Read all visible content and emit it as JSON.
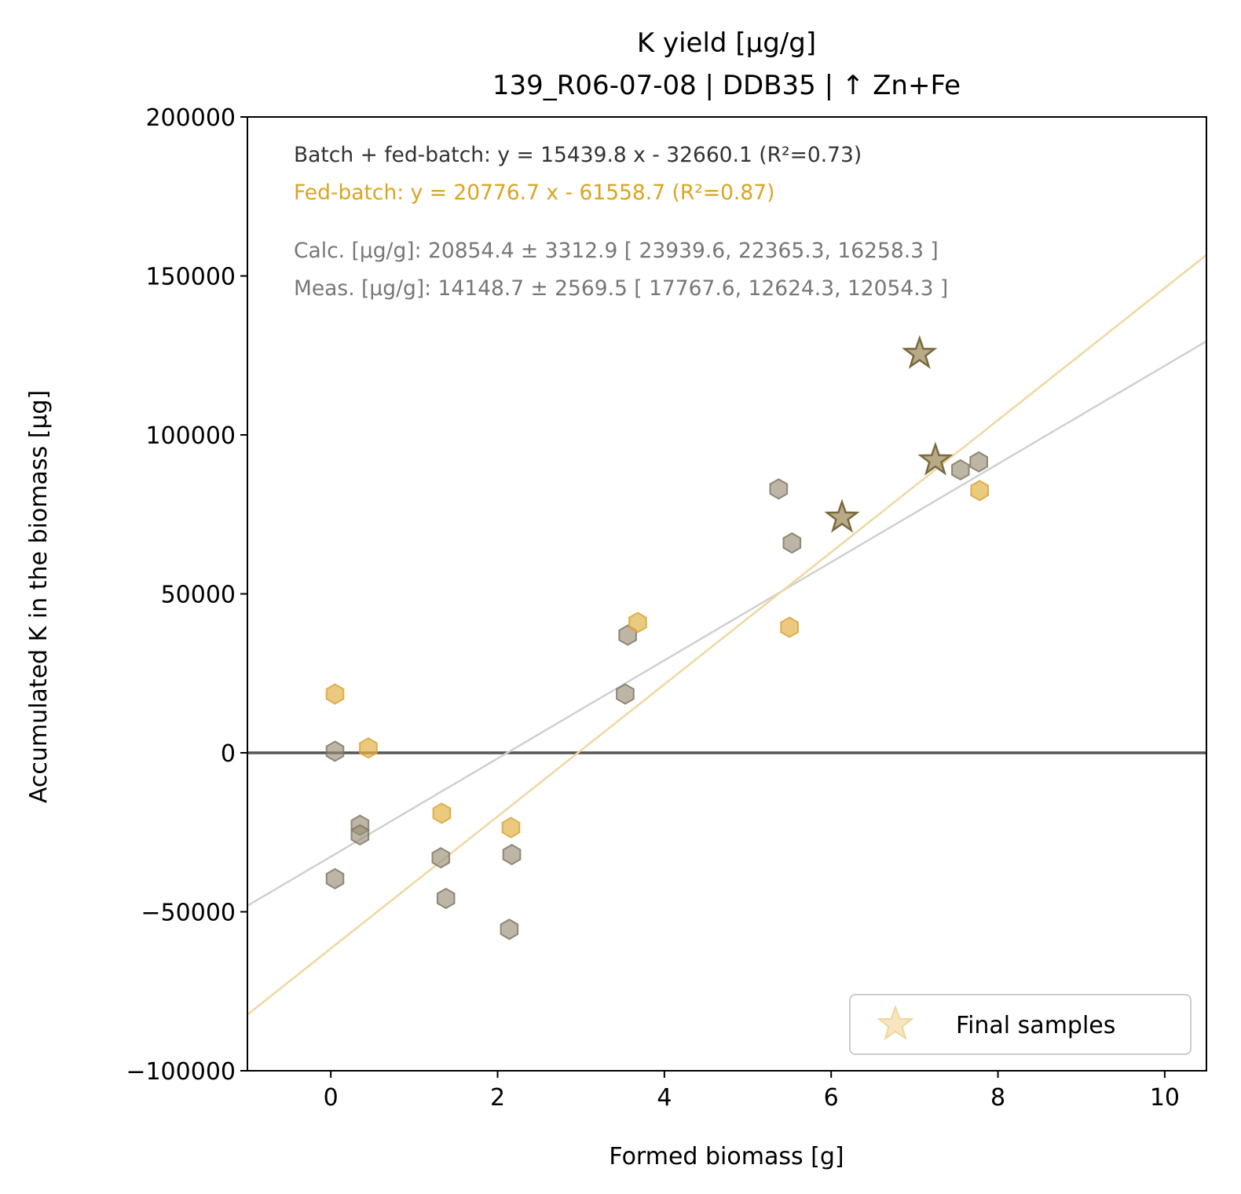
{
  "chart_data": {
    "type": "scatter",
    "title": "K yield [µg/g]",
    "subtitle": "139_R06-07-08  |  DDB35  |  ↑ Zn+Fe",
    "xlabel": "Formed biomass [g]",
    "ylabel": "Accumulated K in the biomass [µg]",
    "xlim": [
      -1.0,
      10.5
    ],
    "ylim": [
      -100000,
      200000
    ],
    "xticks": [
      0,
      2,
      4,
      6,
      8,
      10
    ],
    "yticks": [
      -100000,
      -50000,
      0,
      50000,
      100000,
      150000,
      200000
    ],
    "ytick_labels": [
      "−100000",
      "−50000",
      "0",
      "50000",
      "100000",
      "150000",
      "200000"
    ],
    "grid": false,
    "zero_line": true,
    "legend": {
      "position": "lower-right",
      "entries": [
        "Final samples"
      ]
    },
    "colors": {
      "batch_points": "#9a8f78",
      "fedbatch_points": "#e3b44a",
      "final_samples": "#a08c5f",
      "batch_line": "#d0d0d0",
      "fedbatch_line": "#efd8a0",
      "annot_dark": "#333333",
      "annot_fed": "#daa520",
      "annot_gray": "#777777"
    },
    "annotations": {
      "batch_fit": "Batch + fed-batch: y = 15439.8 x - 32660.1 (R²=0.73)",
      "fed_fit": "Fed-batch: y = 20776.7 x - 61558.7 (R²=0.87)",
      "calc": "Calc. [µg/g]: 20854.4 ± 3312.9 [ 23939.6, 22365.3, 16258.3 ]",
      "meas": "Meas. [µg/g]: 14148.7 ± 2569.5 [ 17767.6, 12624.3, 12054.3 ]"
    },
    "fits": [
      {
        "slope": 15439.8,
        "intercept": -32660.1
      },
      {
        "slope": 20776.7,
        "intercept": -61558.7
      }
    ],
    "series": [
      {
        "marker": "hexagon",
        "x": [
          0.05,
          0.35,
          0.35,
          0.05,
          1.32,
          1.38,
          2.14,
          2.17,
          3.53,
          3.56,
          5.37,
          5.53,
          7.55,
          7.77
        ],
        "y": [
          500,
          -22800,
          -25800,
          -39600,
          -33000,
          -45800,
          -55500,
          -32000,
          18500,
          37000,
          83000,
          66000,
          89000,
          91500
        ]
      },
      {
        "marker": "hexagon",
        "x": [
          0.05,
          0.45,
          1.33,
          2.16,
          3.68,
          5.5,
          7.78
        ],
        "y": [
          18500,
          1500,
          -19000,
          -23500,
          41000,
          39500,
          82500
        ]
      },
      {
        "name": "Final samples",
        "marker": "star",
        "x": [
          6.13,
          7.06,
          7.25
        ],
        "y": [
          74000,
          125500,
          92000
        ]
      }
    ]
  }
}
